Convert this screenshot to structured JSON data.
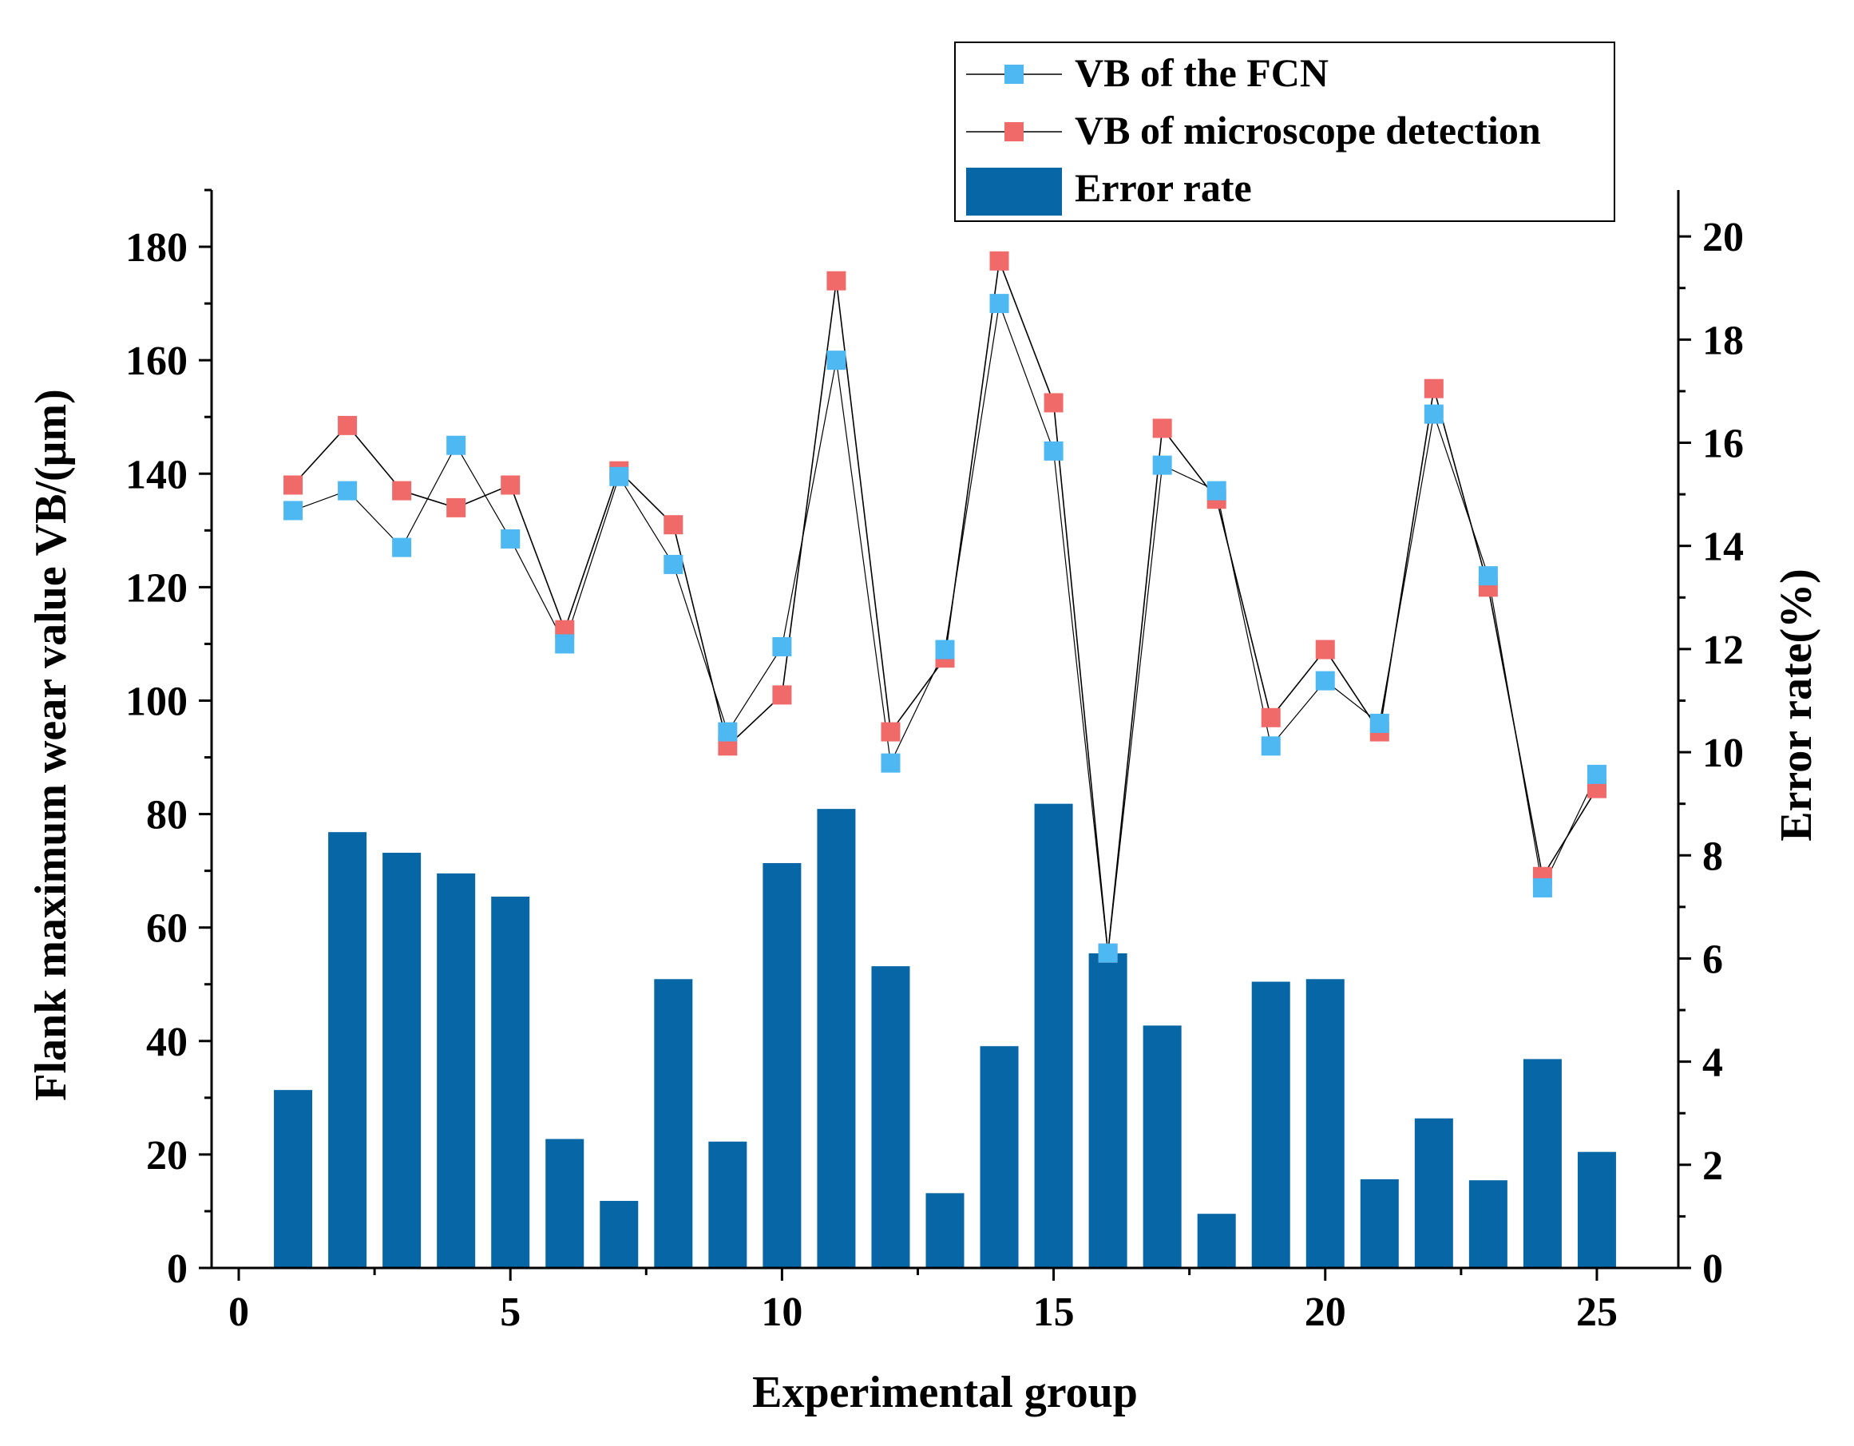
{
  "colors": {
    "bar": "#0766a6",
    "fcn_marker": "#4db8f2",
    "microscope_marker": "#f06a6a",
    "line": "#000000",
    "axis": "#000000",
    "background": "#ffffff"
  },
  "chart_data": {
    "type": "bar+line (dual axis)",
    "xlabel": "Experimental group",
    "ylabel_left": "Flank maximum wear value VB/(μm)",
    "ylabel_right": "Error rate(%)",
    "xlim": [
      -0.5,
      26.5
    ],
    "ylim_left": [
      0,
      190
    ],
    "ylim_right": [
      0,
      20.9
    ],
    "x_ticks": [
      "0",
      "5",
      "10",
      "15",
      "20",
      "25"
    ],
    "y_left_ticks": [
      "0",
      "20",
      "40",
      "60",
      "80",
      "100",
      "120",
      "140",
      "160",
      "180"
    ],
    "y_right_ticks": [
      "0",
      "2",
      "4",
      "6",
      "8",
      "10",
      "12",
      "14",
      "16",
      "18",
      "20"
    ],
    "x": [
      1,
      2,
      3,
      4,
      5,
      6,
      7,
      8,
      9,
      10,
      11,
      12,
      13,
      14,
      15,
      16,
      17,
      18,
      19,
      20,
      21,
      22,
      23,
      24,
      25
    ],
    "series": [
      {
        "name": "VB of the FCN",
        "axis": "left",
        "kind": "line-square",
        "values": [
          133.5,
          137,
          127,
          145,
          128.5,
          110,
          139.5,
          124,
          94.5,
          109.5,
          160,
          89,
          109,
          170,
          144,
          55.5,
          141.5,
          137,
          92,
          103.5,
          96,
          150.5,
          122,
          67,
          87
        ]
      },
      {
        "name": "VB of microscope detection",
        "axis": "left",
        "kind": "line-square",
        "values": [
          138,
          148.5,
          137,
          134,
          138,
          112.5,
          140.5,
          131,
          92,
          101,
          174,
          94.5,
          107.5,
          177.5,
          152.5,
          55.5,
          148,
          135.5,
          97,
          109,
          94.5,
          155,
          120,
          69,
          84.5
        ]
      },
      {
        "name": "Error rate",
        "axis": "right",
        "kind": "bar",
        "values": [
          3.45,
          8.45,
          8.05,
          7.65,
          7.2,
          2.5,
          1.3,
          5.6,
          2.45,
          7.85,
          8.9,
          5.85,
          1.45,
          4.3,
          9.0,
          6.1,
          4.7,
          1.05,
          5.55,
          5.6,
          1.72,
          2.9,
          1.7,
          4.05,
          2.25
        ]
      }
    ],
    "legend": {
      "position": "top-right",
      "entries": [
        "VB of the FCN",
        "VB of microscope detection",
        "Error rate"
      ]
    },
    "grid": false
  }
}
